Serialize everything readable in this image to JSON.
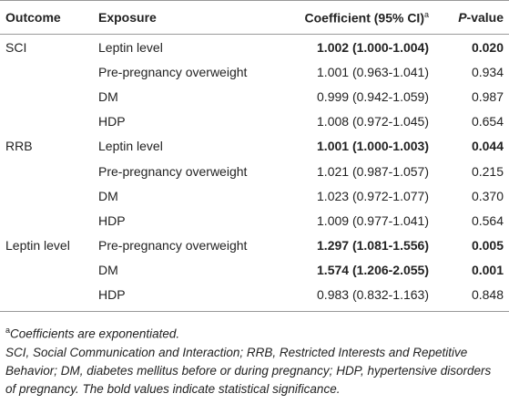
{
  "table": {
    "header": [
      "Outcome",
      "Exposure",
      "Coefficient (95% CI)",
      "P-value"
    ],
    "header_marker": "a",
    "rows": [
      {
        "outcome": "SCI",
        "exposure": "Leptin level",
        "coefficient": "1.002 (1.000-1.004)",
        "p_value": "0.020",
        "significant": true
      },
      {
        "outcome": null,
        "exposure": "Pre-pregnancy overweight",
        "coefficient": "1.001 (0.963-1.041)",
        "p_value": "0.934",
        "significant": false
      },
      {
        "outcome": null,
        "exposure": "DM",
        "coefficient": "0.999 (0.942-1.059)",
        "p_value": "0.987",
        "significant": false
      },
      {
        "outcome": null,
        "exposure": "HDP",
        "coefficient": "1.008 (0.972-1.045)",
        "p_value": "0.654",
        "significant": false
      },
      {
        "outcome": "RRB",
        "exposure": "Leptin level",
        "coefficient": "1.001 (1.000-1.003)",
        "p_value": "0.044",
        "significant": true
      },
      {
        "outcome": null,
        "exposure": "Pre-pregnancy overweight",
        "coefficient": "1.021 (0.987-1.057)",
        "p_value": "0.215",
        "significant": false
      },
      {
        "outcome": null,
        "exposure": "DM",
        "coefficient": "1.023 (0.972-1.077)",
        "p_value": "0.370",
        "significant": false
      },
      {
        "outcome": null,
        "exposure": "HDP",
        "coefficient": "1.009 (0.977-1.041)",
        "p_value": "0.564",
        "significant": false
      },
      {
        "outcome": "Leptin level",
        "exposure": "Pre-pregnancy overweight",
        "coefficient": "1.297 (1.081-1.556)",
        "p_value": "0.005",
        "significant": true
      },
      {
        "outcome": null,
        "exposure": "DM",
        "coefficient": "1.574 (1.206-2.055)",
        "p_value": "0.001",
        "significant": true
      },
      {
        "outcome": null,
        "exposure": "HDP",
        "coefficient": "0.983 (0.832-1.163)",
        "p_value": "0.848",
        "significant": false
      }
    ]
  },
  "notes": [
    {
      "marker": "a",
      "text": "Coefficients are exponentiated."
    },
    {
      "text": "SCI, Social Communication and Interaction; RRB, Restricted Interests and Repetitive Behavior; DM, diabetes mellitus before or during pregnancy; HDP, hypertensive disorders of pregnancy. The bold values indicate statistical significance."
    }
  ]
}
